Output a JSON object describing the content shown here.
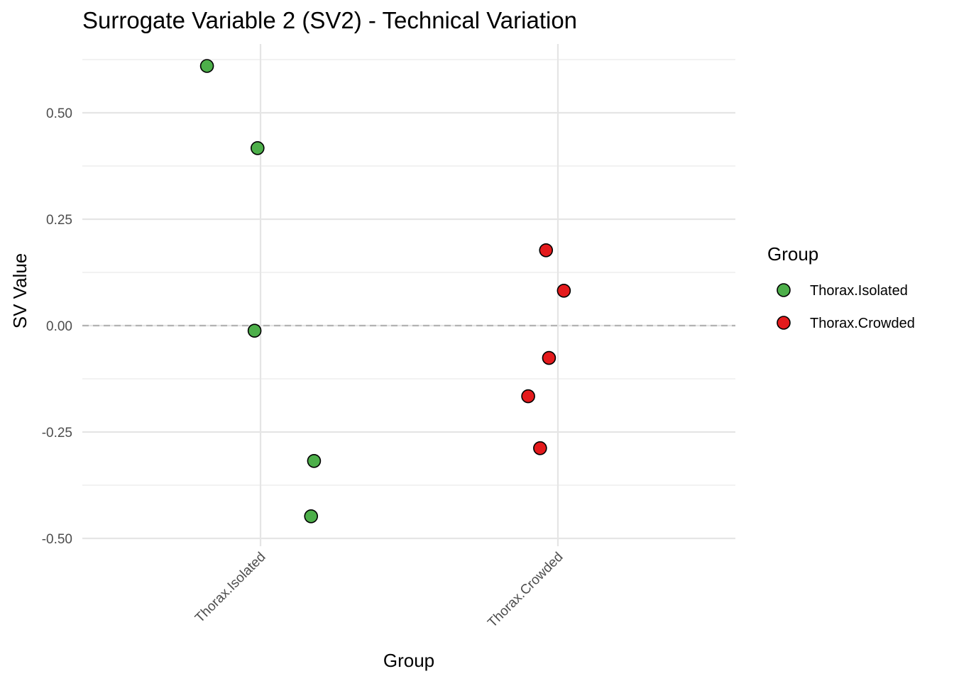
{
  "chart_data": {
    "type": "scatter",
    "title": "Surrogate Variable 2 (SV2) - Technical Variation",
    "xlabel": "Group",
    "ylabel": "SV Value",
    "categories": [
      "Thorax.Isolated",
      "Thorax.Crowded"
    ],
    "ylim": [
      -0.5,
      0.63
    ],
    "y_ticks": [
      {
        "value": -0.5,
        "label": "-0.50"
      },
      {
        "value": -0.25,
        "label": "-0.25"
      },
      {
        "value": 0.0,
        "label": "0.00"
      },
      {
        "value": 0.25,
        "label": "0.25"
      },
      {
        "value": 0.5,
        "label": "0.50"
      }
    ],
    "reference_line": {
      "y": 0.0,
      "style": "dashed"
    },
    "grid": true,
    "legend": {
      "title": "Group",
      "position": "right",
      "entries": [
        {
          "label": "Thorax.Isolated",
          "color": "#4DAF4A"
        },
        {
          "label": "Thorax.Crowded",
          "color": "#E41A1C"
        }
      ]
    },
    "series": [
      {
        "name": "Thorax.Isolated",
        "color": "#4DAF4A",
        "points": [
          {
            "x": 0.82,
            "y": 0.61
          },
          {
            "x": 0.99,
            "y": 0.417
          },
          {
            "x": 0.98,
            "y": -0.012
          },
          {
            "x": 1.18,
            "y": -0.318
          },
          {
            "x": 1.17,
            "y": -0.448
          }
        ]
      },
      {
        "name": "Thorax.Crowded",
        "color": "#E41A1C",
        "points": [
          {
            "x": 1.96,
            "y": 0.177
          },
          {
            "x": 2.02,
            "y": 0.082
          },
          {
            "x": 1.97,
            "y": -0.076
          },
          {
            "x": 1.9,
            "y": -0.166
          },
          {
            "x": 1.94,
            "y": -0.288
          }
        ]
      }
    ]
  }
}
